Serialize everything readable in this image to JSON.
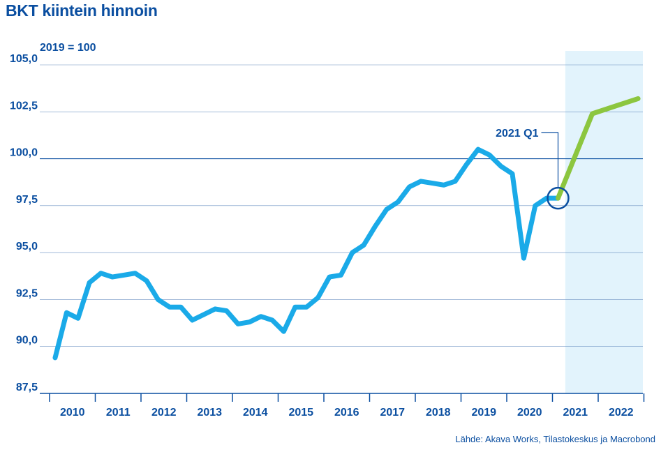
{
  "chart_data": {
    "type": "line",
    "title": "BKT kiintein hinnoin",
    "ylabel": "2019 = 100",
    "source": "Lähde: Akava Works, Tilastokeskus ja Macrobond",
    "ylim": [
      87.5,
      105.0
    ],
    "yticks": [
      "105,0",
      "102,5",
      "100,0",
      "97,5",
      "95,0",
      "92,5",
      "90,0",
      "87,5"
    ],
    "ytick_values": [
      105.0,
      102.5,
      100.0,
      97.5,
      95.0,
      92.5,
      90.0,
      87.5
    ],
    "xticks": [
      "2010",
      "2011",
      "2012",
      "2013",
      "2014",
      "2015",
      "2016",
      "2017",
      "2018",
      "2019",
      "2020",
      "2021",
      "2022"
    ],
    "grid": true,
    "forecast_shading": {
      "from": "2021 Q2",
      "to": "2022 Q4"
    },
    "annotation": {
      "label": "2021 Q1",
      "x": "2021 Q1",
      "y": 97.9
    },
    "series": [
      {
        "role": "actual",
        "color": "#1aaae8",
        "x": [
          "2010 Q1",
          "2010 Q2",
          "2010 Q3",
          "2010 Q4",
          "2011 Q1",
          "2011 Q2",
          "2011 Q3",
          "2011 Q4",
          "2012 Q1",
          "2012 Q2",
          "2012 Q3",
          "2012 Q4",
          "2013 Q1",
          "2013 Q2",
          "2013 Q3",
          "2013 Q4",
          "2014 Q1",
          "2014 Q2",
          "2014 Q3",
          "2014 Q4",
          "2015 Q1",
          "2015 Q2",
          "2015 Q3",
          "2015 Q4",
          "2016 Q1",
          "2016 Q2",
          "2016 Q3",
          "2016 Q4",
          "2017 Q1",
          "2017 Q2",
          "2017 Q3",
          "2017 Q4",
          "2018 Q1",
          "2018 Q2",
          "2018 Q3",
          "2018 Q4",
          "2019 Q1",
          "2019 Q2",
          "2019 Q3",
          "2019 Q4",
          "2020 Q1",
          "2020 Q2",
          "2020 Q3",
          "2020 Q4",
          "2021 Q1"
        ],
        "values": [
          89.4,
          91.8,
          91.5,
          93.4,
          93.9,
          93.7,
          93.8,
          93.9,
          93.5,
          92.5,
          92.1,
          92.1,
          91.4,
          91.7,
          92.0,
          91.9,
          91.2,
          91.3,
          91.6,
          91.4,
          90.8,
          92.1,
          92.1,
          92.6,
          93.7,
          93.8,
          95.0,
          95.4,
          96.4,
          97.3,
          97.7,
          98.5,
          98.8,
          98.7,
          98.6,
          98.8,
          99.7,
          100.5,
          100.2,
          99.6,
          99.2,
          94.7,
          97.5,
          97.9,
          97.9
        ]
      },
      {
        "role": "forecast",
        "color": "#8cc63f",
        "x": [
          "2021 Q1",
          "2021 Q4",
          "2022 Q4"
        ],
        "values": [
          97.9,
          102.4,
          103.2
        ]
      }
    ]
  }
}
